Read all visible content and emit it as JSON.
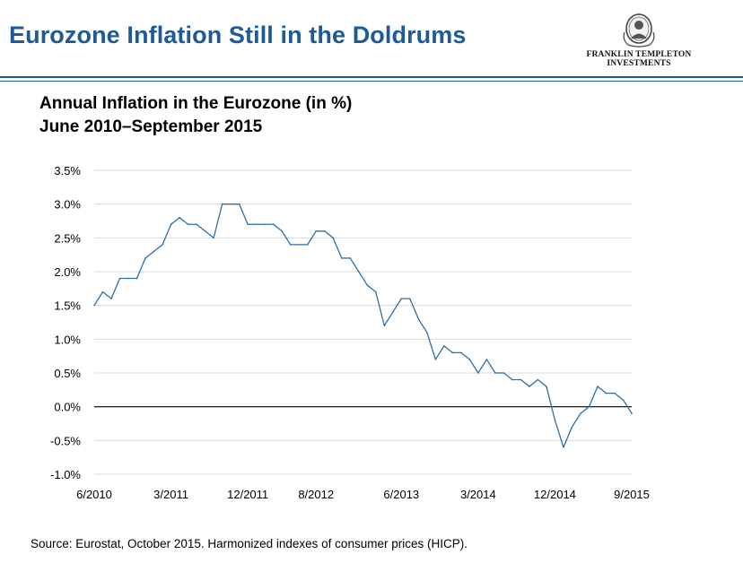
{
  "header": {
    "title": "Eurozone Inflation Still in the Doldrums",
    "logo": {
      "icon": "portrait-seal-icon",
      "line1": "FRANKLIN TEMPLETON",
      "line2": "INVESTMENTS"
    }
  },
  "chart_title": "Annual Inflation in the Eurozone (in %)",
  "chart_subtitle": "June 2010–September 2015",
  "source": "Source: Eurostat, October 2015. Harmonized indexes of consumer prices (HICP).",
  "colors": {
    "title": "#1d5a96",
    "line": "#2e6fa6",
    "grid": "#d9d9d9",
    "zero_line": "#000000"
  },
  "chart_data": {
    "type": "line",
    "title": "Annual Inflation in the Eurozone (in %)",
    "subtitle": "June 2010–September 2015",
    "xlabel": "",
    "ylabel": "",
    "ylim": [
      -1.0,
      3.5
    ],
    "y_ticks": [
      3.5,
      3.0,
      2.5,
      2.0,
      1.5,
      1.0,
      0.5,
      0.0,
      -0.5,
      -1.0
    ],
    "y_tick_labels": [
      "3.5%",
      "3.0%",
      "2.5%",
      "2.0%",
      "1.5%",
      "1.0%",
      "0.5%",
      "0.0%",
      "-0.5%",
      "-1.0%"
    ],
    "x_tick_labels": [
      {
        "label": "6/2010",
        "index": 0
      },
      {
        "label": "3/2011",
        "index": 9
      },
      {
        "label": "12/2011",
        "index": 18
      },
      {
        "label": "8/2012",
        "index": 26
      },
      {
        "label": "6/2013",
        "index": 36
      },
      {
        "label": "3/2014",
        "index": 45
      },
      {
        "label": "12/2014",
        "index": 54
      },
      {
        "label": "9/2015",
        "index": 63
      }
    ],
    "grid": true,
    "legend": "none",
    "series": [
      {
        "x_start": "6/2010",
        "frequency": "monthly",
        "values": [
          1.5,
          1.7,
          1.6,
          1.9,
          1.9,
          1.9,
          2.2,
          2.3,
          2.4,
          2.7,
          2.8,
          2.7,
          2.7,
          2.6,
          2.5,
          3.0,
          3.0,
          3.0,
          2.7,
          2.7,
          2.7,
          2.7,
          2.6,
          2.4,
          2.4,
          2.4,
          2.6,
          2.6,
          2.5,
          2.2,
          2.2,
          2.0,
          1.8,
          1.7,
          1.2,
          1.4,
          1.6,
          1.6,
          1.3,
          1.1,
          0.7,
          0.9,
          0.8,
          0.8,
          0.7,
          0.5,
          0.7,
          0.5,
          0.5,
          0.4,
          0.4,
          0.3,
          0.4,
          0.3,
          -0.2,
          -0.6,
          -0.3,
          -0.1,
          0.0,
          0.3,
          0.2,
          0.2,
          0.1,
          -0.1
        ]
      }
    ]
  }
}
